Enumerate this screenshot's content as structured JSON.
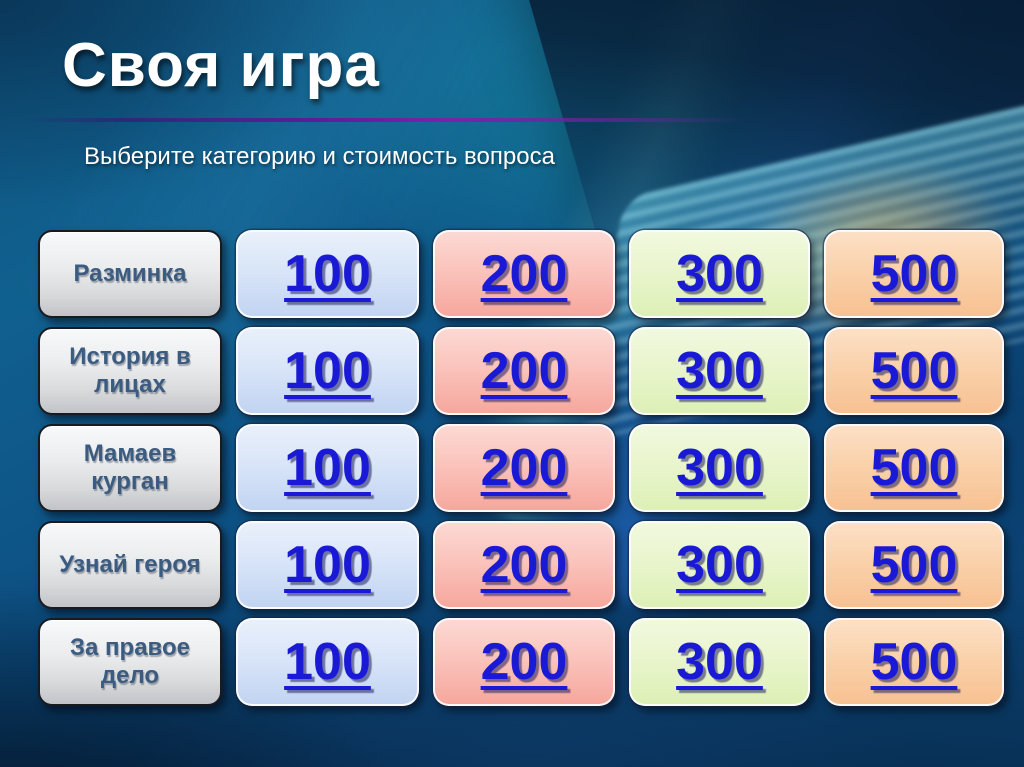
{
  "slide": {
    "title": "Своя игра",
    "subtitle": "Выберите категорию и стоимость вопроса"
  },
  "board": {
    "value_columns": [
      "100",
      "200",
      "300",
      "500"
    ],
    "rows": [
      {
        "category": "Разминка",
        "cells": [
          "100",
          "200",
          "300",
          "500"
        ]
      },
      {
        "category": "История в лицах",
        "cells": [
          "100",
          "200",
          "300",
          "500"
        ]
      },
      {
        "category": "Мамаев курган",
        "cells": [
          "100",
          "200",
          "300",
          "500"
        ]
      },
      {
        "category": "Узнай героя",
        "cells": [
          "100",
          "200",
          "300",
          "500"
        ]
      },
      {
        "category": "За правое дело",
        "cells": [
          "100",
          "200",
          "300",
          "500"
        ]
      }
    ]
  },
  "colors": {
    "background_blue": "#0b4a7e",
    "divider_purple": "#7b23a8",
    "category_button_bg": "#e3e5e7",
    "category_text_blue": "#3b5c80",
    "value_link_blue": "#1a1ad6",
    "column_100_bg": "#c2d4f2",
    "column_200_bg": "#f6a79d",
    "column_300_bg": "#ddf0b6",
    "column_500_bg": "#f7c192"
  }
}
